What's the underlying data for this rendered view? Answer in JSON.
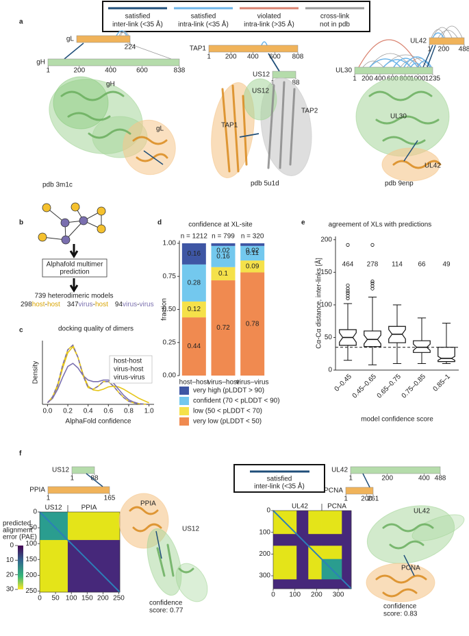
{
  "panel_labels": [
    "a",
    "b",
    "c",
    "d",
    "e",
    "f"
  ],
  "legend": {
    "items": [
      {
        "lines": [
          "satisfied",
          "inter-link (<35 Å)"
        ],
        "color": "#1f4e79"
      },
      {
        "lines": [
          "satisfied",
          "intra-link (<35 Å)"
        ],
        "color": "#6cb4e8"
      },
      {
        "lines": [
          "violated",
          "intra-link (>35 Å)"
        ],
        "color": "#d9826f"
      },
      {
        "lines": [
          "cross-link",
          "not in pdb"
        ],
        "color": "#9a9a9a"
      }
    ]
  },
  "panel_a": {
    "structures": [
      {
        "bars": [
          {
            "name": "gL",
            "ticks": [
              224
            ]
          },
          {
            "name": "gH",
            "ticks": [
              1,
              200,
              400,
              600,
              838
            ]
          }
        ],
        "labels": [
          "gH",
          "gL"
        ],
        "pdb": "pdb 3m1c"
      },
      {
        "bars": [
          {
            "name": "TAP1",
            "ticks": [
              1,
              200,
              400,
              600,
              808
            ]
          },
          {
            "name": "US12",
            "ticks": [
              1,
              88
            ]
          }
        ],
        "labels": [
          "US12",
          "TAP2",
          "TAP1"
        ],
        "pdb": "pdb 5u1d"
      },
      {
        "bars": [
          {
            "name": "UL42",
            "ticks": [
              1,
              200,
              488
            ]
          },
          {
            "name": "UL30",
            "ticks": [
              1,
              200,
              400,
              600,
              800,
              1000,
              1235
            ]
          }
        ],
        "labels": [
          "UL30",
          "UL42"
        ],
        "pdb": "pdb 9enp"
      }
    ]
  },
  "panel_b": {
    "box_lines": [
      "Alphafold multimer",
      "prediction"
    ],
    "total": "739 heterodimeric models",
    "colors": {
      "host": "#d9a400",
      "virus": "#7a6faf"
    },
    "counts": [
      {
        "n": 298,
        "parts": [
          "host",
          "-",
          "host"
        ]
      },
      {
        "n": 347,
        "parts": [
          "virus",
          "-",
          "host"
        ]
      },
      {
        "n": 94,
        "parts": [
          "virus",
          "-",
          "virus"
        ]
      }
    ]
  },
  "chart_data": [
    {
      "type": "line",
      "title": "docking quality of dimers",
      "xlabel": "AlphaFold confidence",
      "ylabel": "Density",
      "x": [
        0,
        0.05,
        0.1,
        0.15,
        0.2,
        0.25,
        0.3,
        0.35,
        0.4,
        0.45,
        0.5,
        0.55,
        0.6,
        0.65,
        0.7,
        0.75,
        0.8,
        0.85,
        0.9,
        0.95,
        1
      ],
      "xlim": [
        -0.05,
        1.05
      ],
      "ylim": [
        0,
        4.2
      ],
      "xticks": [
        {
          "value": 0,
          "label": "0.0"
        },
        {
          "value": 0.2,
          "label": "0.2"
        },
        {
          "value": 0.4,
          "label": "0.4"
        },
        {
          "value": 0.6,
          "label": "0.6"
        },
        {
          "value": 0.8,
          "label": "0.8"
        },
        {
          "value": 1,
          "label": "1.0"
        }
      ],
      "legend": "upper right",
      "series": [
        {
          "name": "host-host",
          "color": "#e6c619",
          "values": [
            0.1,
            0.4,
            1.2,
            2.4,
            3.4,
            3.8,
            3.1,
            2.0,
            1.2,
            0.95,
            0.9,
            1.0,
            1.15,
            1.2,
            1.15,
            1.0,
            0.8,
            0.6,
            0.4,
            0.25,
            0.1
          ]
        },
        {
          "name": "virus-host",
          "color": "#7a6faf",
          "values": [
            0.1,
            0.4,
            1.0,
            1.8,
            2.5,
            2.7,
            2.4,
            1.9,
            1.6,
            1.5,
            1.5,
            1.6,
            1.6,
            1.4,
            1.0,
            0.6,
            0.3,
            0.15,
            0.05,
            0.02,
            0
          ]
        },
        {
          "name": "virus-virus",
          "color": "#7a6faf",
          "dash_color": "#e6c619",
          "style": "dashed",
          "values": [
            0.1,
            0.5,
            1.3,
            2.6,
            3.6,
            3.9,
            3.1,
            1.9,
            1.1,
            1.0,
            1.2,
            1.5,
            1.5,
            1.2,
            0.8,
            0.45,
            0.2,
            0.1,
            0.04,
            0.01,
            0
          ]
        }
      ]
    },
    {
      "type": "stacked_bar",
      "title": "confidence at XL-site",
      "ylabel": "fraction",
      "categories": [
        "host–host",
        "virus–host",
        "virus–virus"
      ],
      "n_labels": [
        "n = 1212",
        "n = 799",
        "n = 320"
      ],
      "ylim": [
        0,
        1
      ],
      "yticks": [
        {
          "value": 0,
          "label": "0.00"
        },
        {
          "value": 0.25,
          "label": "0.25"
        },
        {
          "value": 0.5,
          "label": "0.50"
        },
        {
          "value": 0.75,
          "label": "0.75"
        },
        {
          "value": 1,
          "label": "1.00"
        }
      ],
      "series": [
        {
          "name": "very high (pLDDT > 90)",
          "color": "#3e56a4",
          "values": [
            0.16,
            0.02,
            0.02
          ]
        },
        {
          "name": "confident (70 < pLDDT < 90)",
          "color": "#73c8ee",
          "values": [
            0.28,
            0.16,
            0.11
          ]
        },
        {
          "name": "low (50 < pLDDT < 70)",
          "color": "#f5e14a",
          "values": [
            0.12,
            0.1,
            0.09
          ]
        },
        {
          "name": "very low (pLDDT < 50)",
          "color": "#f08a50",
          "values": [
            0.44,
            0.72,
            0.78
          ]
        }
      ]
    },
    {
      "type": "box",
      "title": "agreement of XLs with predictions",
      "xlabel": "model confidence score",
      "ylabel": "Cα-Cα distance, inter-links [Å]",
      "categories": [
        "0–0.45",
        "0.45–0.65",
        "0.65–0.75",
        "0.75–0.85",
        "0.85–1"
      ],
      "n_labels": [
        464,
        278,
        114,
        66,
        49
      ],
      "n_label_y": 162,
      "ylim": [
        0,
        205
      ],
      "yticks": [
        0,
        50,
        100,
        150,
        200
      ],
      "reference_line": 35,
      "boxes": [
        {
          "whislo": 15,
          "q1": 38,
          "med": 50,
          "q3": 62,
          "whishi": 102,
          "fliers": [
            110,
            114,
            118,
            121,
            125,
            130,
            192
          ]
        },
        {
          "whislo": 8,
          "q1": 36,
          "med": 47,
          "q3": 60,
          "whishi": 112,
          "fliers": [
            125,
            129,
            133,
            136,
            192
          ]
        },
        {
          "whislo": 10,
          "q1": 42,
          "med": 55,
          "q3": 67,
          "whishi": 100,
          "fliers": []
        },
        {
          "whislo": 10,
          "q1": 27,
          "med": 35,
          "q3": 45,
          "whishi": 80,
          "fliers": []
        },
        {
          "whislo": 10,
          "q1": 13,
          "med": 18,
          "q3": 35,
          "whishi": 72,
          "fliers": []
        }
      ]
    }
  ],
  "panel_f": {
    "legend_lines": [
      "satisfied",
      "inter-link (<35 Å)"
    ],
    "legend_color": "#1f4e79",
    "colorbar": {
      "label": [
        "predicted",
        "alignment",
        "error (PAE)"
      ],
      "ticks": [
        0,
        10,
        20,
        30
      ]
    },
    "left": {
      "bars": [
        {
          "name": "US12",
          "ticks": [
            1,
            88
          ]
        },
        {
          "name": "PPIA",
          "ticks": [
            1,
            165
          ]
        }
      ],
      "heatmap": {
        "segments": [
          "US12",
          "PPIA"
        ],
        "xticks": [
          0,
          50,
          100,
          150,
          200,
          250
        ],
        "yticks": [
          0,
          50,
          100,
          150,
          200,
          250
        ]
      },
      "labels": [
        "PPIA",
        "US12"
      ],
      "confidence": [
        "confidence",
        "score: 0.77"
      ]
    },
    "right": {
      "bars": [
        {
          "name": "UL42",
          "ticks": [
            1,
            200,
            400,
            488
          ]
        },
        {
          "name": "PCNA",
          "ticks": [
            1,
            200,
            261
          ]
        }
      ],
      "heatmap": {
        "segments": [
          "UL42",
          "PCNA"
        ],
        "xticks": [
          0,
          100,
          200,
          300
        ],
        "yticks": [
          0,
          100,
          200,
          300
        ]
      },
      "labels": [
        "UL42",
        "PCNA"
      ],
      "confidence": [
        "confidence",
        "score: 0.83"
      ]
    }
  }
}
